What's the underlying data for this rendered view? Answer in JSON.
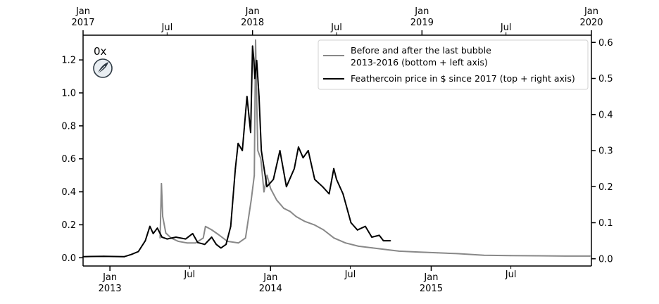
{
  "badge": {
    "label": "0x",
    "icon": "feather-icon"
  },
  "chart_data": [
    {
      "type": "line",
      "name": "bubble-2013",
      "legend_label": "Before and after the last bubble\n2013-2016 (bottom + left axis)",
      "color": "#888888",
      "x_axis": {
        "position": "bottom",
        "range": [
          "2012-11-01",
          "2015-12-31"
        ],
        "major_ticks": [
          {
            "date": "2013-01-01",
            "label": "Jan\n2013"
          },
          {
            "date": "2014-01-01",
            "label": "Jan\n2014"
          },
          {
            "date": "2015-01-01",
            "label": "Jan\n2015"
          }
        ],
        "minor_ticks": [
          {
            "date": "2013-07-01",
            "label": "Jul"
          },
          {
            "date": "2014-07-01",
            "label": "Jul"
          },
          {
            "date": "2015-07-01",
            "label": "Jul"
          }
        ]
      },
      "y_axis": {
        "position": "left",
        "ylim": [
          -0.05,
          1.35
        ],
        "ticks": [
          "0.0",
          "0.2",
          "0.4",
          "0.6",
          "0.8",
          "1.0",
          "1.2"
        ]
      },
      "points": [
        [
          "2013-04-25",
          0.12
        ],
        [
          "2013-04-28",
          0.45
        ],
        [
          "2013-05-01",
          0.25
        ],
        [
          "2013-05-08",
          0.15
        ],
        [
          "2013-05-20",
          0.12
        ],
        [
          "2013-06-05",
          0.1
        ],
        [
          "2013-06-25",
          0.09
        ],
        [
          "2013-07-15",
          0.09
        ],
        [
          "2013-08-01",
          0.12
        ],
        [
          "2013-08-06",
          0.19
        ],
        [
          "2013-08-20",
          0.17
        ],
        [
          "2013-09-05",
          0.14
        ],
        [
          "2013-09-25",
          0.1
        ],
        [
          "2013-10-20",
          0.09
        ],
        [
          "2013-11-05",
          0.12
        ],
        [
          "2013-11-18",
          0.35
        ],
        [
          "2013-11-25",
          0.5
        ],
        [
          "2013-11-28",
          1.32
        ],
        [
          "2013-12-01",
          0.9
        ],
        [
          "2013-12-03",
          0.65
        ],
        [
          "2013-12-10",
          0.6
        ],
        [
          "2013-12-17",
          0.4
        ],
        [
          "2013-12-24",
          0.5
        ],
        [
          "2014-01-01",
          0.42
        ],
        [
          "2014-01-15",
          0.35
        ],
        [
          "2014-01-31",
          0.3
        ],
        [
          "2014-02-15",
          0.28
        ],
        [
          "2014-02-28",
          0.25
        ],
        [
          "2014-03-20",
          0.22
        ],
        [
          "2014-04-10",
          0.2
        ],
        [
          "2014-05-01",
          0.17
        ],
        [
          "2014-05-25",
          0.12
        ],
        [
          "2014-06-20",
          0.09
        ],
        [
          "2014-07-20",
          0.07
        ],
        [
          "2014-08-20",
          0.06
        ],
        [
          "2014-09-20",
          0.05
        ],
        [
          "2014-10-20",
          0.04
        ],
        [
          "2014-12-01",
          0.035
        ],
        [
          "2015-01-15",
          0.03
        ],
        [
          "2015-03-01",
          0.025
        ],
        [
          "2015-05-01",
          0.015
        ],
        [
          "2015-07-01",
          0.013
        ],
        [
          "2015-09-01",
          0.012
        ],
        [
          "2015-11-01",
          0.01
        ],
        [
          "2015-12-28",
          0.01
        ]
      ]
    },
    {
      "type": "line",
      "name": "feathercoin-2017",
      "legend_label": "Feathercoin price in $ since 2017 (top + right axis)",
      "color": "#000000",
      "x_axis": {
        "position": "top",
        "range": [
          "2017-01-01",
          "2020-01-01"
        ],
        "major_ticks": [
          {
            "date": "2017-01-01",
            "label": "Jan\n2017"
          },
          {
            "date": "2018-01-01",
            "label": "Jan\n2018"
          },
          {
            "date": "2019-01-01",
            "label": "Jan\n2019"
          },
          {
            "date": "2020-01-01",
            "label": "Jan\n2020"
          }
        ],
        "minor_ticks": [
          {
            "date": "2017-07-01",
            "label": "Jul"
          },
          {
            "date": "2018-07-01",
            "label": "Jul"
          },
          {
            "date": "2019-07-01",
            "label": "Jul"
          }
        ]
      },
      "y_axis": {
        "position": "right",
        "ylim": [
          -0.02,
          0.62
        ],
        "ticks": [
          "0.0",
          "0.1",
          "0.2",
          "0.3",
          "0.4",
          "0.5",
          "0.6"
        ]
      },
      "points": [
        [
          "2017-01-01",
          0.006
        ],
        [
          "2017-02-15",
          0.007
        ],
        [
          "2017-03-31",
          0.006
        ],
        [
          "2017-04-15",
          0.012
        ],
        [
          "2017-04-30",
          0.02
        ],
        [
          "2017-05-15",
          0.05
        ],
        [
          "2017-05-25",
          0.09
        ],
        [
          "2017-06-01",
          0.07
        ],
        [
          "2017-06-10",
          0.085
        ],
        [
          "2017-06-20",
          0.06
        ],
        [
          "2017-07-01",
          0.055
        ],
        [
          "2017-07-20",
          0.06
        ],
        [
          "2017-08-10",
          0.055
        ],
        [
          "2017-08-25",
          0.07
        ],
        [
          "2017-09-05",
          0.045
        ],
        [
          "2017-09-20",
          0.04
        ],
        [
          "2017-10-05",
          0.06
        ],
        [
          "2017-10-15",
          0.04
        ],
        [
          "2017-10-25",
          0.03
        ],
        [
          "2017-11-05",
          0.04
        ],
        [
          "2017-11-15",
          0.09
        ],
        [
          "2017-11-25",
          0.25
        ],
        [
          "2017-12-01",
          0.32
        ],
        [
          "2017-12-10",
          0.3
        ],
        [
          "2017-12-20",
          0.45
        ],
        [
          "2017-12-28",
          0.35
        ],
        [
          "2018-01-01",
          0.59
        ],
        [
          "2018-01-04",
          0.55
        ],
        [
          "2018-01-06",
          0.5
        ],
        [
          "2018-01-10",
          0.55
        ],
        [
          "2018-01-15",
          0.45
        ],
        [
          "2018-01-20",
          0.3
        ],
        [
          "2018-02-01",
          0.2
        ],
        [
          "2018-02-15",
          0.22
        ],
        [
          "2018-03-01",
          0.3
        ],
        [
          "2018-03-15",
          0.2
        ],
        [
          "2018-04-01",
          0.25
        ],
        [
          "2018-04-10",
          0.31
        ],
        [
          "2018-04-20",
          0.28
        ],
        [
          "2018-05-01",
          0.3
        ],
        [
          "2018-05-15",
          0.22
        ],
        [
          "2018-06-01",
          0.2
        ],
        [
          "2018-06-15",
          0.18
        ],
        [
          "2018-06-25",
          0.25
        ],
        [
          "2018-07-01",
          0.22
        ],
        [
          "2018-07-15",
          0.18
        ],
        [
          "2018-08-01",
          0.1
        ],
        [
          "2018-08-15",
          0.08
        ],
        [
          "2018-09-01",
          0.09
        ],
        [
          "2018-09-15",
          0.06
        ],
        [
          "2018-10-01",
          0.065
        ],
        [
          "2018-10-10",
          0.05
        ],
        [
          "2018-10-25",
          0.05
        ]
      ]
    }
  ]
}
